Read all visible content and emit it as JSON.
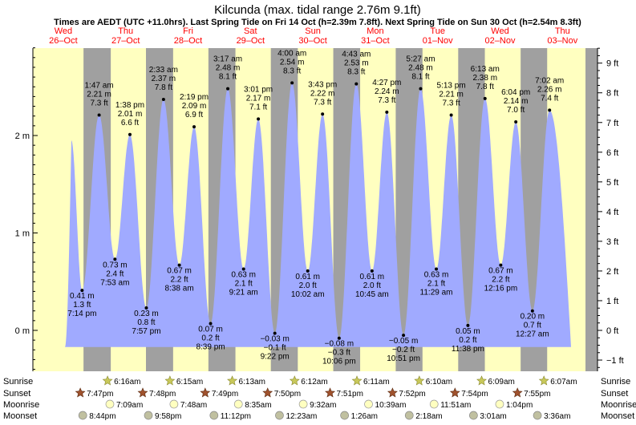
{
  "chart_data": {
    "type": "area",
    "title": "Kilcunda (max. tidal range 2.76m 9.1ft)",
    "subtitle": "Times are AEDT (UTC +11.0hrs). Last Spring Tide on Fri 14 Oct (h=2.39m 7.8ft). Next Spring Tide on Sun 30 Oct (h=2.54m 8.3ft)",
    "colors": {
      "tide_fill": "#a0aaff",
      "day_band": "#ffffc0",
      "night_band": "#a0a0a0",
      "day_label": "#ff0000",
      "sun_marker": "#c8c85a",
      "sunset_marker": "#a0522d",
      "moon_marker": "#ffffc0"
    },
    "y_left_ticks": [
      "0 m",
      "1 m",
      "2 m"
    ],
    "y_right_ticks": [
      "−1 ft",
      "0 ft",
      "1 ft",
      "2 ft",
      "3 ft",
      "4 ft",
      "5 ft",
      "6 ft",
      "7 ft",
      "8 ft",
      "9 ft"
    ],
    "ylim_m": [
      -0.45,
      2.95
    ],
    "days": [
      {
        "day": "Wed",
        "date": "26–Oct"
      },
      {
        "day": "Thu",
        "date": "27–Oct"
      },
      {
        "day": "Fri",
        "date": "28–Oct"
      },
      {
        "day": "Sat",
        "date": "29–Oct"
      },
      {
        "day": "Sun",
        "date": "30–Oct"
      },
      {
        "day": "Mon",
        "date": "31–Oct"
      },
      {
        "day": "Tue",
        "date": "01–Nov"
      },
      {
        "day": "Wed",
        "date": "02–Nov"
      },
      {
        "day": "Thu",
        "date": "03–Nov"
      }
    ],
    "initial_height_m": 1.95,
    "tides": [
      {
        "day": 0,
        "time": "7:14 pm",
        "m": 0.41,
        "ft": "1.3 ft",
        "type": "low"
      },
      {
        "day": 1,
        "time": "1:47 am",
        "m": 2.21,
        "ft": "7.3 ft",
        "type": "high"
      },
      {
        "day": 1,
        "time": "7:53 am",
        "m": 0.73,
        "ft": "2.4 ft",
        "type": "low"
      },
      {
        "day": 1,
        "time": "1:38 pm",
        "m": 2.01,
        "ft": "6.6 ft",
        "type": "high"
      },
      {
        "day": 1,
        "time": "7:57 pm",
        "m": 0.23,
        "ft": "0.8 ft",
        "type": "low"
      },
      {
        "day": 2,
        "time": "2:33 am",
        "m": 2.37,
        "ft": "7.8 ft",
        "type": "high"
      },
      {
        "day": 2,
        "time": "8:38 am",
        "m": 0.67,
        "ft": "2.2 ft",
        "type": "low"
      },
      {
        "day": 2,
        "time": "2:19 pm",
        "m": 2.09,
        "ft": "6.9 ft",
        "type": "high"
      },
      {
        "day": 2,
        "time": "8:39 pm",
        "m": 0.07,
        "ft": "0.2 ft",
        "type": "low"
      },
      {
        "day": 3,
        "time": "3:17 am",
        "m": 2.48,
        "ft": "8.1 ft",
        "type": "high"
      },
      {
        "day": 3,
        "time": "9:21 am",
        "m": 0.63,
        "ft": "2.1 ft",
        "type": "low"
      },
      {
        "day": 3,
        "time": "3:01 pm",
        "m": 2.17,
        "ft": "7.1 ft",
        "type": "high"
      },
      {
        "day": 3,
        "time": "9:22 pm",
        "m": -0.03,
        "ft": "−0.1 ft",
        "type": "low"
      },
      {
        "day": 4,
        "time": "4:00 am",
        "m": 2.54,
        "ft": "8.3 ft",
        "type": "high"
      },
      {
        "day": 4,
        "time": "10:02 am",
        "m": 0.61,
        "ft": "2.0 ft",
        "type": "low"
      },
      {
        "day": 4,
        "time": "3:43 pm",
        "m": 2.22,
        "ft": "7.3 ft",
        "type": "high"
      },
      {
        "day": 4,
        "time": "10:06 pm",
        "m": -0.08,
        "ft": "−0.3 ft",
        "type": "low"
      },
      {
        "day": 5,
        "time": "4:43 am",
        "m": 2.53,
        "ft": "8.3 ft",
        "type": "high"
      },
      {
        "day": 5,
        "time": "10:45 am",
        "m": 0.61,
        "ft": "2.0 ft",
        "type": "low"
      },
      {
        "day": 5,
        "time": "4:27 pm",
        "m": 2.24,
        "ft": "7.3 ft",
        "type": "high"
      },
      {
        "day": 5,
        "time": "10:51 pm",
        "m": -0.05,
        "ft": "−0.2 ft",
        "type": "low"
      },
      {
        "day": 6,
        "time": "5:27 am",
        "m": 2.48,
        "ft": "8.1 ft",
        "type": "high"
      },
      {
        "day": 6,
        "time": "11:29 am",
        "m": 0.63,
        "ft": "2.1 ft",
        "type": "low"
      },
      {
        "day": 6,
        "time": "5:13 pm",
        "m": 2.21,
        "ft": "7.3 ft",
        "type": "high"
      },
      {
        "day": 6,
        "time": "11:38 pm",
        "m": 0.05,
        "ft": "0.2 ft",
        "type": "low"
      },
      {
        "day": 7,
        "time": "6:13 am",
        "m": 2.38,
        "ft": "7.8 ft",
        "type": "high"
      },
      {
        "day": 7,
        "time": "12:16 pm",
        "m": 0.67,
        "ft": "2.2 ft",
        "type": "low"
      },
      {
        "day": 7,
        "time": "6:04 pm",
        "m": 2.14,
        "ft": "7.0 ft",
        "type": "high"
      },
      {
        "day": 8,
        "time": "12:27 am",
        "m": 0.2,
        "ft": "0.7 ft",
        "type": "low"
      },
      {
        "day": 8,
        "time": "7:02 am",
        "m": 2.26,
        "ft": "7.4 ft",
        "type": "high"
      }
    ],
    "night_bands": [
      {
        "from_day": 0,
        "from": "7:47 pm",
        "to_day": 1,
        "to": "6:16 am"
      },
      {
        "from_day": 1,
        "from": "7:48 pm",
        "to_day": 2,
        "to": "6:15 am"
      },
      {
        "from_day": 2,
        "from": "7:49 pm",
        "to_day": 3,
        "to": "6:13 am"
      },
      {
        "from_day": 3,
        "from": "7:50 pm",
        "to_day": 4,
        "to": "6:12 am"
      },
      {
        "from_day": 4,
        "from": "7:51 pm",
        "to_day": 5,
        "to": "6:11 am"
      },
      {
        "from_day": 5,
        "from": "7:52 pm",
        "to_day": 6,
        "to": "6:10 am"
      },
      {
        "from_day": 6,
        "from": "7:54 pm",
        "to_day": 7,
        "to": "6:09 am"
      },
      {
        "from_day": 7,
        "from": "7:55 pm",
        "to_day": 8,
        "to": "6:07 am"
      }
    ],
    "astro_rows": [
      {
        "label": "Sunrise",
        "marker": "sun",
        "events": [
          {
            "day": 1,
            "time": "6:16am"
          },
          {
            "day": 2,
            "time": "6:15am"
          },
          {
            "day": 3,
            "time": "6:13am"
          },
          {
            "day": 4,
            "time": "6:12am"
          },
          {
            "day": 5,
            "time": "6:11am"
          },
          {
            "day": 6,
            "time": "6:10am"
          },
          {
            "day": 7,
            "time": "6:09am"
          },
          {
            "day": 8,
            "time": "6:07am"
          }
        ]
      },
      {
        "label": "Sunset",
        "marker": "sunset",
        "events": [
          {
            "day": 0,
            "time": "7:47pm"
          },
          {
            "day": 1,
            "time": "7:48pm"
          },
          {
            "day": 2,
            "time": "7:49pm"
          },
          {
            "day": 3,
            "time": "7:50pm"
          },
          {
            "day": 4,
            "time": "7:51pm"
          },
          {
            "day": 5,
            "time": "7:52pm"
          },
          {
            "day": 6,
            "time": "7:54pm"
          },
          {
            "day": 7,
            "time": "7:55pm"
          }
        ]
      },
      {
        "label": "Moonrise",
        "marker": "moonrise",
        "events": [
          {
            "day": 1,
            "time": "7:09am"
          },
          {
            "day": 2,
            "time": "7:48am"
          },
          {
            "day": 3,
            "time": "8:35am"
          },
          {
            "day": 4,
            "time": "9:32am"
          },
          {
            "day": 5,
            "time": "10:39am"
          },
          {
            "day": 6,
            "time": "11:51am"
          },
          {
            "day": 7,
            "time": "1:04pm"
          }
        ]
      },
      {
        "label": "Moonset",
        "marker": "moonset",
        "events": [
          {
            "day": 0,
            "time": "8:44pm"
          },
          {
            "day": 1,
            "time": "9:58pm"
          },
          {
            "day": 2,
            "time": "11:12pm"
          },
          {
            "day": 4,
            "time": "12:23am"
          },
          {
            "day": 5,
            "time": "1:26am"
          },
          {
            "day": 6,
            "time": "2:18am"
          },
          {
            "day": 7,
            "time": "3:01am"
          },
          {
            "day": 8,
            "time": "3:36am"
          }
        ]
      }
    ]
  }
}
